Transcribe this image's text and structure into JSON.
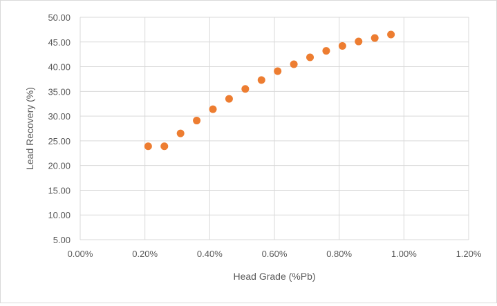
{
  "chart_data": {
    "type": "scatter",
    "title": "",
    "xlabel": "Head Grade (%Pb)",
    "ylabel": "Lead Recovery (%)",
    "xlim": [
      0.0,
      1.2
    ],
    "ylim": [
      5.0,
      50.0
    ],
    "xticks": [
      0.0,
      0.2,
      0.4,
      0.6,
      0.8,
      1.0,
      1.2
    ],
    "xtick_labels": [
      "0.00%",
      "0.20%",
      "0.40%",
      "0.60%",
      "0.80%",
      "1.00%",
      "1.20%"
    ],
    "yticks": [
      5,
      10,
      15,
      20,
      25,
      30,
      35,
      40,
      45,
      50
    ],
    "ytick_labels": [
      "5.00",
      "10.00",
      "15.00",
      "20.00",
      "25.00",
      "30.00",
      "35.00",
      "40.00",
      "45.00",
      "50.00"
    ],
    "grid": "vertical and horizontal major gridlines",
    "legend": "none",
    "marker_color": "#ED7D31",
    "series": [
      {
        "x": [
          0.21,
          0.26,
          0.31,
          0.36,
          0.41,
          0.46,
          0.51,
          0.56,
          0.61,
          0.66,
          0.71,
          0.76,
          0.81,
          0.86,
          0.91,
          0.96
        ],
        "y": [
          23.9,
          23.9,
          26.5,
          29.1,
          31.4,
          33.5,
          35.5,
          37.3,
          39.1,
          40.5,
          41.9,
          43.2,
          44.2,
          45.1,
          45.8,
          46.5
        ]
      }
    ]
  }
}
